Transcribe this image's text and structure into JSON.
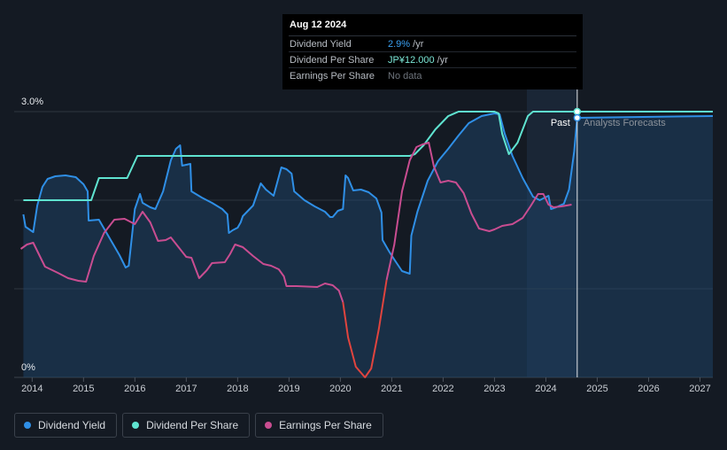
{
  "tooltip": {
    "date": "Aug 12 2024",
    "rows": [
      {
        "label": "Dividend Yield",
        "value": "2.9%",
        "unit": " /yr",
        "color": "#3aa0f2"
      },
      {
        "label": "Dividend Per Share",
        "value": "JP¥12.000",
        "unit": " /yr",
        "color": "#7ce8d8"
      },
      {
        "label": "Earnings Per Share",
        "value": "No data",
        "unit": "",
        "color": "#6e747c"
      }
    ]
  },
  "regions": {
    "past": "Past",
    "forecast": "Analysts Forecasts"
  },
  "legend": [
    {
      "label": "Dividend Yield",
      "color": "#2f8fe6"
    },
    {
      "label": "Dividend Per Share",
      "color": "#5fe3d0"
    },
    {
      "label": "Earnings Per Share",
      "color": "#c94d91"
    }
  ],
  "chart_data": {
    "type": "line",
    "y_axis": {
      "min": 0,
      "max": 3.0,
      "tick_labels": [
        "3.0%",
        "0%"
      ],
      "tick_values": [
        3.0,
        0
      ]
    },
    "x_axis": {
      "min": 2013.65,
      "max": 2027.25,
      "tick_labels": [
        "2014",
        "2015",
        "2016",
        "2017",
        "2018",
        "2019",
        "2020",
        "2021",
        "2022",
        "2023",
        "2024",
        "2025",
        "2026",
        "2027"
      ],
      "tick_values": [
        2014,
        2015,
        2016,
        2017,
        2018,
        2019,
        2020,
        2021,
        2022,
        2023,
        2024,
        2025,
        2026,
        2027
      ]
    },
    "grid": true,
    "past_forecast_divider": 2024.61,
    "forecast_shade_start": 2023.63,
    "series": [
      {
        "name": "Dividend Yield",
        "color": "#2f8fe6",
        "area": true,
        "points": [
          [
            2013.83,
            1.84
          ],
          [
            2013.87,
            1.7
          ],
          [
            2014.02,
            1.64
          ],
          [
            2014.1,
            1.94
          ],
          [
            2014.2,
            2.15
          ],
          [
            2014.3,
            2.24
          ],
          [
            2014.45,
            2.27
          ],
          [
            2014.65,
            2.28
          ],
          [
            2014.85,
            2.26
          ],
          [
            2015.0,
            2.18
          ],
          [
            2015.08,
            2.1
          ],
          [
            2015.1,
            1.77
          ],
          [
            2015.3,
            1.78
          ],
          [
            2015.5,
            1.58
          ],
          [
            2015.7,
            1.38
          ],
          [
            2015.82,
            1.24
          ],
          [
            2015.88,
            1.26
          ],
          [
            2016.0,
            1.9
          ],
          [
            2016.1,
            2.07
          ],
          [
            2016.15,
            1.97
          ],
          [
            2016.3,
            1.92
          ],
          [
            2016.4,
            1.9
          ],
          [
            2016.55,
            2.1
          ],
          [
            2016.7,
            2.45
          ],
          [
            2016.8,
            2.58
          ],
          [
            2016.88,
            2.62
          ],
          [
            2016.92,
            2.39
          ],
          [
            2017.08,
            2.41
          ],
          [
            2017.1,
            2.1
          ],
          [
            2017.3,
            2.03
          ],
          [
            2017.5,
            1.97
          ],
          [
            2017.7,
            1.9
          ],
          [
            2017.8,
            1.84
          ],
          [
            2017.83,
            1.63
          ],
          [
            2017.9,
            1.66
          ],
          [
            2018.0,
            1.69
          ],
          [
            2018.06,
            1.75
          ],
          [
            2018.1,
            1.82
          ],
          [
            2018.3,
            1.94
          ],
          [
            2018.45,
            2.19
          ],
          [
            2018.55,
            2.12
          ],
          [
            2018.7,
            2.05
          ],
          [
            2018.85,
            2.37
          ],
          [
            2018.95,
            2.35
          ],
          [
            2019.05,
            2.3
          ],
          [
            2019.1,
            2.1
          ],
          [
            2019.3,
            2.0
          ],
          [
            2019.5,
            1.93
          ],
          [
            2019.7,
            1.87
          ],
          [
            2019.8,
            1.81
          ],
          [
            2019.85,
            1.81
          ],
          [
            2019.95,
            1.88
          ],
          [
            2020.05,
            1.9
          ],
          [
            2020.1,
            2.28
          ],
          [
            2020.15,
            2.25
          ],
          [
            2020.25,
            2.11
          ],
          [
            2020.4,
            2.12
          ],
          [
            2020.55,
            2.09
          ],
          [
            2020.7,
            2.02
          ],
          [
            2020.8,
            1.86
          ],
          [
            2020.82,
            1.55
          ],
          [
            2020.95,
            1.42
          ],
          [
            2021.05,
            1.33
          ],
          [
            2021.2,
            1.2
          ],
          [
            2021.35,
            1.17
          ],
          [
            2021.38,
            1.6
          ],
          [
            2021.5,
            1.87
          ],
          [
            2021.7,
            2.22
          ],
          [
            2021.9,
            2.44
          ],
          [
            2022.1,
            2.58
          ],
          [
            2022.3,
            2.73
          ],
          [
            2022.5,
            2.87
          ],
          [
            2022.75,
            2.95
          ],
          [
            2023.0,
            2.98
          ],
          [
            2023.1,
            2.97
          ],
          [
            2023.2,
            2.75
          ],
          [
            2023.35,
            2.5
          ],
          [
            2023.55,
            2.25
          ],
          [
            2023.75,
            2.04
          ],
          [
            2023.88,
            2.0
          ],
          [
            2024.05,
            2.05
          ],
          [
            2024.1,
            1.9
          ],
          [
            2024.2,
            1.92
          ],
          [
            2024.35,
            1.96
          ],
          [
            2024.45,
            2.12
          ],
          [
            2024.55,
            2.55
          ],
          [
            2024.61,
            2.93
          ],
          [
            2027.25,
            2.95
          ]
        ]
      },
      {
        "name": "Dividend Per Share",
        "color": "#5fe3d0",
        "area": false,
        "points": [
          [
            2013.83,
            2.0
          ],
          [
            2015.15,
            2.0
          ],
          [
            2015.3,
            2.25
          ],
          [
            2015.85,
            2.25
          ],
          [
            2016.05,
            2.5
          ],
          [
            2021.35,
            2.5
          ],
          [
            2021.45,
            2.52
          ],
          [
            2021.62,
            2.62
          ],
          [
            2021.85,
            2.8
          ],
          [
            2022.1,
            2.95
          ],
          [
            2022.3,
            3.0
          ],
          [
            2023.0,
            3.0
          ],
          [
            2023.08,
            2.98
          ],
          [
            2023.15,
            2.75
          ],
          [
            2023.28,
            2.52
          ],
          [
            2023.45,
            2.65
          ],
          [
            2023.65,
            2.95
          ],
          [
            2023.75,
            3.0
          ],
          [
            2027.25,
            3.0
          ]
        ]
      },
      {
        "name": "Earnings Per Share",
        "color": "#c94d91",
        "area": false,
        "points": [
          [
            2013.78,
            1.45
          ],
          [
            2013.9,
            1.5
          ],
          [
            2014.02,
            1.52
          ],
          [
            2014.25,
            1.25
          ],
          [
            2014.5,
            1.18
          ],
          [
            2014.7,
            1.12
          ],
          [
            2014.9,
            1.09
          ],
          [
            2015.05,
            1.08
          ],
          [
            2015.2,
            1.37
          ],
          [
            2015.4,
            1.63
          ],
          [
            2015.6,
            1.78
          ],
          [
            2015.8,
            1.79
          ],
          [
            2016.0,
            1.73
          ],
          [
            2016.15,
            1.87
          ],
          [
            2016.3,
            1.75
          ],
          [
            2016.45,
            1.54
          ],
          [
            2016.6,
            1.55
          ],
          [
            2016.7,
            1.58
          ],
          [
            2016.85,
            1.47
          ],
          [
            2017.0,
            1.36
          ],
          [
            2017.1,
            1.35
          ],
          [
            2017.25,
            1.12
          ],
          [
            2017.4,
            1.21
          ],
          [
            2017.5,
            1.29
          ],
          [
            2017.75,
            1.3
          ],
          [
            2017.85,
            1.39
          ],
          [
            2017.95,
            1.5
          ],
          [
            2018.1,
            1.47
          ],
          [
            2018.3,
            1.37
          ],
          [
            2018.5,
            1.28
          ],
          [
            2018.65,
            1.26
          ],
          [
            2018.8,
            1.22
          ],
          [
            2018.9,
            1.14
          ],
          [
            2018.95,
            1.03
          ],
          [
            2019.15,
            1.03
          ],
          [
            2019.55,
            1.02
          ],
          [
            2019.7,
            1.06
          ],
          [
            2019.85,
            1.04
          ],
          [
            2019.97,
            0.98
          ],
          [
            2020.05,
            0.85
          ],
          [
            2020.15,
            0.45
          ],
          [
            2020.3,
            0.12
          ],
          [
            2020.48,
            0.0
          ],
          [
            2020.6,
            0.1
          ],
          [
            2020.75,
            0.55
          ],
          [
            2020.9,
            1.1
          ],
          [
            2021.05,
            1.5
          ],
          [
            2021.2,
            2.1
          ],
          [
            2021.35,
            2.45
          ],
          [
            2021.48,
            2.6
          ],
          [
            2021.6,
            2.63
          ],
          [
            2021.72,
            2.65
          ],
          [
            2021.82,
            2.38
          ],
          [
            2021.95,
            2.2
          ],
          [
            2022.1,
            2.22
          ],
          [
            2022.25,
            2.2
          ],
          [
            2022.4,
            2.08
          ],
          [
            2022.55,
            1.85
          ],
          [
            2022.7,
            1.68
          ],
          [
            2022.9,
            1.65
          ],
          [
            2023.0,
            1.67
          ],
          [
            2023.15,
            1.71
          ],
          [
            2023.35,
            1.73
          ],
          [
            2023.55,
            1.8
          ],
          [
            2023.7,
            1.93
          ],
          [
            2023.85,
            2.07
          ],
          [
            2023.95,
            2.07
          ],
          [
            2024.05,
            1.95
          ],
          [
            2024.15,
            1.92
          ],
          [
            2024.3,
            1.93
          ],
          [
            2024.5,
            1.95
          ]
        ]
      }
    ]
  }
}
